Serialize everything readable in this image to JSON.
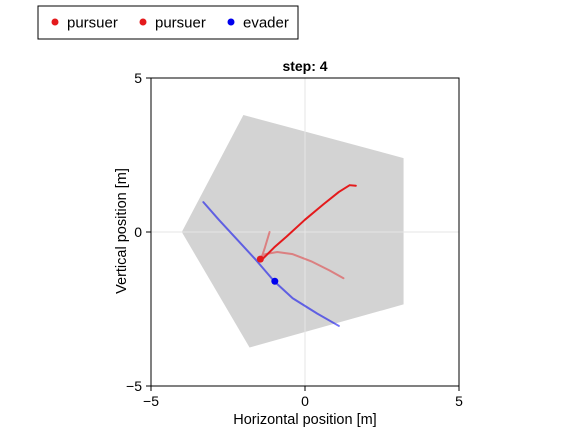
{
  "chart_data": {
    "type": "line",
    "title": "step: 4",
    "xlabel": "Horizontal position [m]",
    "ylabel": "Vertical position [m]",
    "xlim": [
      -5,
      5
    ],
    "ylim": [
      -5,
      5
    ],
    "xticks": [
      -5,
      0,
      5
    ],
    "yticks": [
      -5,
      0,
      5
    ],
    "xtick_labels": [
      "−5",
      "0",
      "5"
    ],
    "ytick_labels": [
      "−5",
      "0",
      "5"
    ],
    "grid": true,
    "legend_position": "top-left, outside plot",
    "arena": {
      "color": "#d3d3d3",
      "vertices": [
        [
          -2.0,
          3.8
        ],
        [
          3.2,
          2.4
        ],
        [
          3.2,
          -2.35
        ],
        [
          -1.8,
          -3.75
        ],
        [
          -4.0,
          0.0
        ]
      ]
    },
    "series": [
      {
        "name": "pursuer",
        "color": "#e41a1c",
        "opacity": 1.0,
        "path": [
          [
            1.65,
            1.5
          ],
          [
            1.45,
            1.52
          ],
          [
            1.1,
            1.3
          ],
          [
            0.6,
            0.9
          ],
          [
            0.0,
            0.4
          ],
          [
            -0.6,
            -0.15
          ],
          [
            -1.0,
            -0.5
          ],
          [
            -1.35,
            -0.85
          ]
        ],
        "position": [
          -1.45,
          -0.88
        ]
      },
      {
        "name": "pursuer",
        "color": "#e41a1c",
        "opacity": 0.45,
        "path": [
          [
            1.25,
            -1.5
          ],
          [
            0.8,
            -1.25
          ],
          [
            0.2,
            -0.95
          ],
          [
            -0.4,
            -0.72
          ],
          [
            -0.9,
            -0.65
          ],
          [
            -1.3,
            -0.72
          ],
          [
            -1.4,
            -0.8
          ],
          [
            -1.3,
            -0.5
          ],
          [
            -1.15,
            0.0
          ]
        ],
        "position": null
      },
      {
        "name": "evader",
        "color": "#0000ee",
        "opacity": 0.55,
        "path": [
          [
            -3.3,
            0.97
          ],
          [
            -2.8,
            0.4
          ],
          [
            -2.2,
            -0.25
          ],
          [
            -1.6,
            -0.9
          ],
          [
            -1.0,
            -1.6
          ],
          [
            -0.4,
            -2.15
          ],
          [
            0.4,
            -2.65
          ],
          [
            1.1,
            -3.05
          ]
        ],
        "position": [
          -0.98,
          -1.6
        ]
      }
    ],
    "legend": [
      {
        "label": "pursuer",
        "color": "#e41a1c"
      },
      {
        "label": "pursuer",
        "color": "#e41a1c"
      },
      {
        "label": "evader",
        "color": "#0000ee"
      }
    ]
  }
}
